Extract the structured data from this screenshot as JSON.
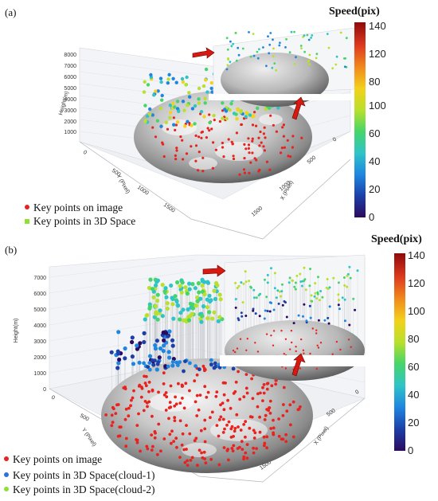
{
  "colors": {
    "key_on_image": "#e8231f",
    "key_3d_a": "#8fe033",
    "cloud1": "#2f6fe0",
    "cloud2": "#8fe033",
    "arrow": "#d7190f",
    "colormap": [
      "#2c0a5e",
      "#1c3fa8",
      "#1f86e0",
      "#2fc4c7",
      "#46d56a",
      "#b8e02c",
      "#f3d11c",
      "#f08a1c",
      "#de3a1e",
      "#8e0a0a"
    ]
  },
  "chart_data": [
    {
      "panel": "(a)",
      "type": "scatter",
      "is_3d": true,
      "colorbar": {
        "title": "Speed(pix)",
        "ticks": [
          0,
          20,
          40,
          60,
          80,
          100,
          120,
          140
        ],
        "range": [
          0,
          140
        ]
      },
      "z_axis": {
        "label": "Height(m)",
        "ticks": [
          1000,
          2000,
          3000,
          4000,
          5000,
          6000,
          7000,
          8000
        ]
      },
      "y_axis": {
        "label": "Y (Pixel)",
        "ticks": [
          0,
          500,
          1000,
          1500
        ]
      },
      "x_axis": {
        "label": "X (Pixel)",
        "ticks": [
          0,
          500,
          1000,
          1500
        ]
      },
      "legend": [
        {
          "label": "Key points on image",
          "color_key": "key_on_image"
        },
        {
          "label": "Key points in 3D Space",
          "color_key": "key_3d_a"
        }
      ]
    },
    {
      "panel": "(b)",
      "type": "scatter",
      "is_3d": true,
      "colorbar": {
        "title": "Speed(pix)",
        "ticks": [
          0,
          20,
          40,
          60,
          80,
          100,
          120,
          140
        ],
        "range": [
          0,
          140
        ]
      },
      "z_axis": {
        "label": "Height(m)",
        "ticks": [
          0,
          1000,
          2000,
          3000,
          4000,
          5000,
          6000,
          7000
        ]
      },
      "y_axis": {
        "label": "Y (Pixel)",
        "ticks": [
          0,
          500,
          1000,
          1500
        ]
      },
      "x_axis": {
        "label": "X (Pixel)",
        "ticks": [
          0,
          500,
          1000,
          1500
        ]
      },
      "legend": [
        {
          "label": "Key points on image",
          "color_key": "key_on_image"
        },
        {
          "label": "Key points in 3D Space(cloud-1)",
          "color_key": "cloud1"
        },
        {
          "label": "Key points in 3D Space(cloud-2)",
          "color_key": "cloud2"
        }
      ]
    }
  ]
}
